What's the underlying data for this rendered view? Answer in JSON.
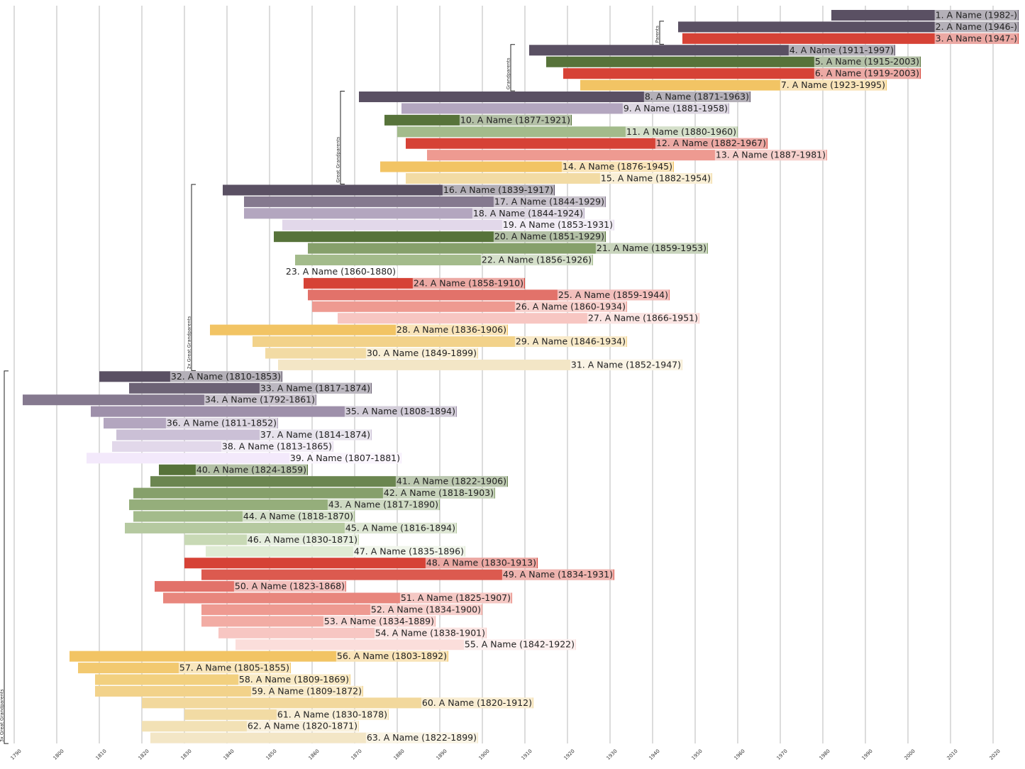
{
  "chart_data": {
    "type": "bar",
    "orientation": "horizontal",
    "title": "",
    "xlabel": "",
    "ylabel": "",
    "xlim": [
      1788,
      2027
    ],
    "x_ticks": [
      1790,
      1800,
      1810,
      1820,
      1830,
      1840,
      1850,
      1860,
      1870,
      1880,
      1890,
      1900,
      1910,
      1920,
      1930,
      1940,
      1950,
      1960,
      1970,
      1980,
      1990,
      2000,
      2010,
      2020
    ],
    "grid": "vertical",
    "legend": "none",
    "open_end_year": 2026,
    "groups": [
      {
        "label": "Parents",
        "from": 2,
        "to": 3
      },
      {
        "label": "Grandparents",
        "from": 4,
        "to": 7
      },
      {
        "label": "Great Grandparents",
        "from": 8,
        "to": 15
      },
      {
        "label": "2x Great Grandparents",
        "from": 16,
        "to": 31
      },
      {
        "label": "3x Great Grandparents",
        "from": 32,
        "to": 63
      }
    ],
    "people": [
      {
        "label": "1. A Name (1982-)",
        "start": 1982,
        "end": null,
        "color": "#5a5063"
      },
      {
        "label": "2. A Name (1946-)",
        "start": 1946,
        "end": null,
        "color": "#5a5063"
      },
      {
        "label": "3. A Name (1947-)",
        "start": 1947,
        "end": null,
        "color": "#d64236"
      },
      {
        "label": "4. A Name (1911-1997)",
        "start": 1911,
        "end": 1997,
        "color": "#5a5063"
      },
      {
        "label": "5. A Name (1915-2003)",
        "start": 1915,
        "end": 2003,
        "color": "#57733a"
      },
      {
        "label": "6. A Name (1919-2003)",
        "start": 1919,
        "end": 2003,
        "color": "#d64236"
      },
      {
        "label": "7. A Name (1923-1995)",
        "start": 1923,
        "end": 1995,
        "color": "#f2c464"
      },
      {
        "label": "8. A Name (1871-1963)",
        "start": 1871,
        "end": 1963,
        "color": "#5a5063"
      },
      {
        "label": "9. A Name (1881-1958)",
        "start": 1881,
        "end": 1958,
        "color": "#b3a6bf"
      },
      {
        "label": "10. A Name (1877-1921)",
        "start": 1877,
        "end": 1921,
        "color": "#57733a"
      },
      {
        "label": "11. A Name (1880-1960)",
        "start": 1880,
        "end": 1960,
        "color": "#a3bb8b"
      },
      {
        "label": "12. A Name (1882-1967)",
        "start": 1882,
        "end": 1967,
        "color": "#d64236"
      },
      {
        "label": "13. A Name (1887-1981)",
        "start": 1887,
        "end": 1981,
        "color": "#ee9a91"
      },
      {
        "label": "14. A Name (1876-1945)",
        "start": 1876,
        "end": 1945,
        "color": "#f2c464"
      },
      {
        "label": "15. A Name (1882-1954)",
        "start": 1882,
        "end": 1954,
        "color": "#f2dba4"
      },
      {
        "label": "16. A Name (1839-1917)",
        "start": 1839,
        "end": 1917,
        "color": "#5a5063"
      },
      {
        "label": "17. A Name (1844-1929)",
        "start": 1844,
        "end": 1929,
        "color": "#85798f"
      },
      {
        "label": "18. A Name (1844-1924)",
        "start": 1844,
        "end": 1924,
        "color": "#b3a6bf"
      },
      {
        "label": "19. A Name (1853-1931)",
        "start": 1853,
        "end": 1931,
        "color": "#e2d8ea"
      },
      {
        "label": "20. A Name (1851-1929)",
        "start": 1851,
        "end": 1929,
        "color": "#57733a"
      },
      {
        "label": "21. A Name (1859-1953)",
        "start": 1859,
        "end": 1953,
        "color": "#86a06b"
      },
      {
        "label": "22. A Name (1856-1926)",
        "start": 1856,
        "end": 1926,
        "color": "#a3bb8b"
      },
      {
        "label": "23. A Name (1860-1880)",
        "start": 1860,
        "end": 1880,
        "color": "#ffffff"
      },
      {
        "label": "24. A Name (1858-1910)",
        "start": 1858,
        "end": 1910,
        "color": "#d64236"
      },
      {
        "label": "25. A Name (1859-1944)",
        "start": 1859,
        "end": 1944,
        "color": "#e2726a"
      },
      {
        "label": "26. A Name (1860-1934)",
        "start": 1860,
        "end": 1934,
        "color": "#ee9a91"
      },
      {
        "label": "27. A Name (1866-1951)",
        "start": 1866,
        "end": 1951,
        "color": "#f7c6c2"
      },
      {
        "label": "28. A Name (1836-1906)",
        "start": 1836,
        "end": 1906,
        "color": "#f2c464"
      },
      {
        "label": "29. A Name (1846-1934)",
        "start": 1846,
        "end": 1934,
        "color": "#f2d28a"
      },
      {
        "label": "30. A Name (1849-1899)",
        "start": 1849,
        "end": 1899,
        "color": "#f2dba4"
      },
      {
        "label": "31. A Name (1852-1947)",
        "start": 1852,
        "end": 1947,
        "color": "#f3e6c6"
      },
      {
        "label": "32. A Name (1810-1853)",
        "start": 1810,
        "end": 1853,
        "color": "#5a5063"
      },
      {
        "label": "33. A Name (1817-1874)",
        "start": 1817,
        "end": 1874,
        "color": "#6c6275"
      },
      {
        "label": "34. A Name (1792-1861)",
        "start": 1792,
        "end": 1861,
        "color": "#85798f"
      },
      {
        "label": "35. A Name (1808-1894)",
        "start": 1808,
        "end": 1894,
        "color": "#9e90aa"
      },
      {
        "label": "36. A Name (1811-1852)",
        "start": 1811,
        "end": 1852,
        "color": "#b3a6bf"
      },
      {
        "label": "37. A Name (1814-1874)",
        "start": 1814,
        "end": 1874,
        "color": "#cbc0d6"
      },
      {
        "label": "38. A Name (1813-1865)",
        "start": 1813,
        "end": 1865,
        "color": "#e2d8ea"
      },
      {
        "label": "39. A Name (1807-1881)",
        "start": 1807,
        "end": 1881,
        "color": "#f3e9fb"
      },
      {
        "label": "40. A Name (1824-1859)",
        "start": 1824,
        "end": 1859,
        "color": "#57733a"
      },
      {
        "label": "41. A Name (1822-1906)",
        "start": 1822,
        "end": 1906,
        "color": "#6b8650"
      },
      {
        "label": "42. A Name (1818-1903)",
        "start": 1818,
        "end": 1903,
        "color": "#86a06b"
      },
      {
        "label": "43. A Name (1817-1890)",
        "start": 1817,
        "end": 1890,
        "color": "#95ae7b"
      },
      {
        "label": "44. A Name (1818-1870)",
        "start": 1818,
        "end": 1870,
        "color": "#a3bb8b"
      },
      {
        "label": "45. A Name (1816-1894)",
        "start": 1816,
        "end": 1894,
        "color": "#b5c9a0"
      },
      {
        "label": "46. A Name (1830-1871)",
        "start": 1830,
        "end": 1871,
        "color": "#c8d9b5"
      },
      {
        "label": "47. A Name (1835-1896)",
        "start": 1835,
        "end": 1896,
        "color": "#dfebd3"
      },
      {
        "label": "48. A Name (1830-1913)",
        "start": 1830,
        "end": 1913,
        "color": "#d64236"
      },
      {
        "label": "49. A Name (1834-1931)",
        "start": 1834,
        "end": 1931,
        "color": "#dc5a4f"
      },
      {
        "label": "50. A Name (1823-1868)",
        "start": 1823,
        "end": 1868,
        "color": "#e2726a"
      },
      {
        "label": "51. A Name (1825-1907)",
        "start": 1825,
        "end": 1907,
        "color": "#e8867d"
      },
      {
        "label": "52. A Name (1834-1900)",
        "start": 1834,
        "end": 1900,
        "color": "#ee9a91"
      },
      {
        "label": "53. A Name (1834-1889)",
        "start": 1834,
        "end": 1889,
        "color": "#f2aca4"
      },
      {
        "label": "54. A Name (1838-1901)",
        "start": 1838,
        "end": 1901,
        "color": "#f7c6c2"
      },
      {
        "label": "55. A Name (1842-1922)",
        "start": 1842,
        "end": 1922,
        "color": "#fbdedb"
      },
      {
        "label": "56. A Name (1803-1892)",
        "start": 1803,
        "end": 1892,
        "color": "#f2c464"
      },
      {
        "label": "57. A Name (1805-1855)",
        "start": 1805,
        "end": 1855,
        "color": "#f2c970"
      },
      {
        "label": "58. A Name (1809-1869)",
        "start": 1809,
        "end": 1869,
        "color": "#f2d07f"
      },
      {
        "label": "59. A Name (1809-1872)",
        "start": 1809,
        "end": 1872,
        "color": "#f2d28a"
      },
      {
        "label": "60. A Name (1820-1912)",
        "start": 1820,
        "end": 1912,
        "color": "#f2d89c"
      },
      {
        "label": "61. A Name (1830-1878)",
        "start": 1830,
        "end": 1878,
        "color": "#f2dba4"
      },
      {
        "label": "62. A Name (1820-1871)",
        "start": 1820,
        "end": 1871,
        "color": "#f2e1b5"
      },
      {
        "label": "63. A Name (1822-1899)",
        "start": 1822,
        "end": 1899,
        "color": "#f3e6c6"
      }
    ]
  }
}
